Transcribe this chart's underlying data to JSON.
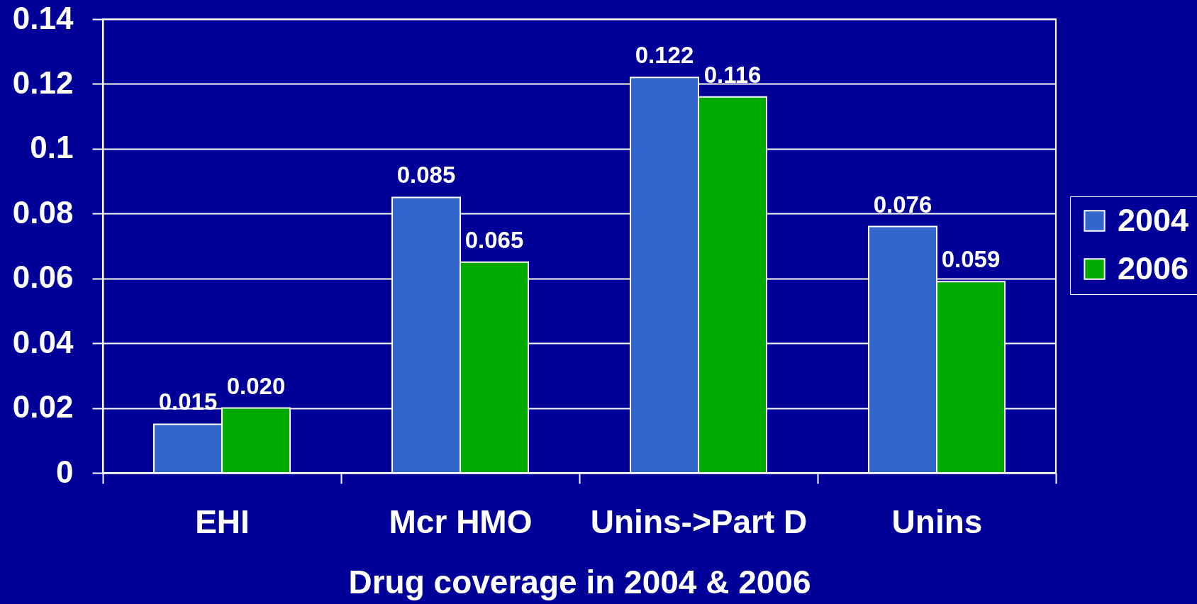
{
  "chart_data": {
    "type": "bar",
    "xlabel": "Drug coverage in 2004 & 2006",
    "categories": [
      "EHI",
      "Mcr HMO",
      "Unins->Part D",
      "Unins"
    ],
    "series": [
      {
        "name": "2004",
        "color": "#3366cc",
        "values": [
          0.015,
          0.085,
          0.122,
          0.076
        ],
        "value_labels": [
          "0.015",
          "0.085",
          "0.122",
          "0.076"
        ]
      },
      {
        "name": "2006",
        "color": "#00aa00",
        "values": [
          0.02,
          0.065,
          0.116,
          0.059
        ],
        "value_labels": [
          "0.020",
          "0.065",
          "0.116",
          "0.059"
        ]
      }
    ],
    "ylim": [
      0,
      0.14
    ],
    "yticks": [
      0,
      0.02,
      0.04,
      0.06,
      0.08,
      0.1,
      0.12,
      0.14
    ],
    "grid": "y",
    "legend": "right"
  }
}
